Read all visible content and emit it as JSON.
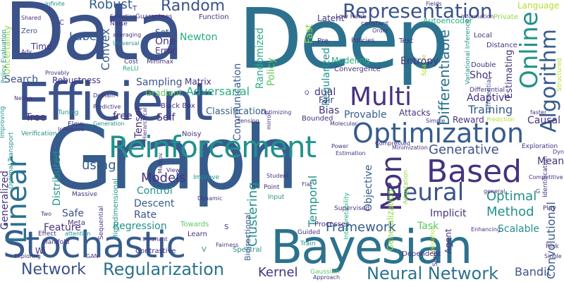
{
  "colors": {
    "deep_purple": "#46327e",
    "indigo": "#3b528b",
    "slate_blue": "#365c8d",
    "steel_blue": "#2c728e",
    "teal": "#21918c",
    "green_teal": "#27ad81",
    "green": "#5ec962",
    "light_green": "#8fd744",
    "yellow_green": "#b5de2b",
    "yellow": "#fde725",
    "purple": "#482878",
    "background": "#ffffff"
  },
  "words": {
    "data": "Data",
    "deep": "Deep",
    "graph": "Graph",
    "efficient": "Efficient",
    "bayesian": "Bayesian",
    "stochastic": "Stochastic",
    "reinforcement": "Reinforcement",
    "optimization": "Optimization",
    "based": "Based",
    "representation": "Representation",
    "linear": "Linear",
    "non": "Non",
    "neural": "Neural",
    "multi": "Multi",
    "online": "Online",
    "algorithm": "Algorithm",
    "random": "Random",
    "robust": "Robust",
    "network": "Network",
    "neural_network": "Neural Network",
    "regularization": "Regularization",
    "generative": "Generative",
    "optimal": "Optimal",
    "method": "Method",
    "models": "Models",
    "framework": "Framework",
    "kernel": "Kernel",
    "regression": "Regression",
    "descent": "Descent",
    "rate": "Rate",
    "control": "Control",
    "sampling": "Sampling",
    "adversarial": "Adversarial",
    "gradient": "Gradient",
    "convex": "Convex",
    "label": "Label",
    "search": "Search",
    "robustness": "Robustness",
    "tree": "Tree",
    "using": "using",
    "free": "free",
    "self": "Self",
    "newton": "Newton",
    "one": "One",
    "set": "Set",
    "error": "Error",
    "matrix": "Matrix",
    "tensor": "Tensor",
    "fair": "Fair",
    "bias": "Bias",
    "provable": "Provable",
    "attacks": "Attacks",
    "training": "Training",
    "adaptive": "Adaptive",
    "reward": "Reward",
    "causal": "Causal",
    "clustering": "Clustering",
    "temporal": "Temporal",
    "implicit": "Implicit",
    "objective": "Objective",
    "classification": "Classification",
    "modeling": "Modeling",
    "entropy": "Entropy",
    "latent": "Latent",
    "fast": "Fast",
    "policy": "Policy",
    "randomized": "Randomized",
    "regularized": "Regularized",
    "differentiable": "Differentiable",
    "shot": "Shot",
    "estimating": "Estimating",
    "mean": "Mean",
    "scalable": "Scalable",
    "convolutional": "Convolutional",
    "bandit": "Bandit",
    "task": "Task",
    "agent": "Agent",
    "feature": "Feature",
    "generalized": "Generalized",
    "distributed": "Distributed",
    "safe": "Safe",
    "time": "Time",
    "uncertainty": "Uncertainty",
    "language": "Language",
    "autoencoder": "Autoencoder",
    "communication": "Communication",
    "dual": "dual",
    "generalization": "Generalization",
    "lowrank": "Low Rank",
    "constant": "constant",
    "pre": "Pre",
    "policies": "Policies",
    "convergence": "Convergence",
    "local": "Local",
    "distance": "Distance",
    "double": "Double",
    "text": "Text",
    "sparse": "Sparse",
    "variational": "Variational Inference",
    "private": "Private",
    "information": "Information",
    "structured": "Structured",
    "differential": "Differential",
    "exploration": "Exploration",
    "identification": "Identification",
    "minimization": "Minimization",
    "adaptation": "Adaptation",
    "shared": "Shared",
    "infinite": "Infinite",
    "policy_evaluation": "Policy Evaluation",
    "zero": "Zero",
    "adv": "Adv",
    "noise": "Noise",
    "averaging": "averaging",
    "universal": "Universal",
    "relu": "ReLU",
    "cost": "Cost",
    "minimax": "Minimax",
    "guarantees": "Guarantees",
    "function": "Function",
    "selection": "Selection",
    "group": "Group",
    "provably": "Provably",
    "netwo": "Netwo",
    "domain": "Domain",
    "predictive": "Predictive",
    "generation": "Generation",
    "tuning": "Tuning",
    "flow": "Flow",
    "inference": "Inference",
    "verification": "Verification",
    "improving": "Improving",
    "optimal_transport": "Optimal Transport",
    "black_box": "Black Box",
    "hierarchical": "Hierarchical",
    "noisy": "Noisy",
    "sensing": "Sensing",
    "optimizing": "Optimizing",
    "mirror": "mirror",
    "bounded": "Bounded",
    "molecular": "Molecular",
    "simple": "Simple",
    "compressed": "Compressed",
    "power": "Power",
    "estimation": "Estimation",
    "massive": "Massive",
    "meta": "Meta",
    "markov": "Markov",
    "view": "View",
    "improve": "Improve",
    "dynamic": "Dynamic",
    "high_dimensional": "High dimensional",
    "sequential": "Sequential",
    "invariant": "Invariant",
    "towards": "Towards",
    "learn": "Learn",
    "contrastive": "Contrastive",
    "spectral": "Spectral",
    "fairness": "Fairness",
    "bidirectional": "Bidirectional",
    "input": "Input",
    "point": "Point",
    "student": "Student",
    "flat": "Flat",
    "supervised": "Supervised",
    "interpretability": "Interpretability",
    "processes": "Processes",
    "guided": "Guided",
    "train": "Train",
    "dependent": "Dependent",
    "gaussian": "Gaussian",
    "approach": "Approach",
    "semi": "Semi",
    "validation": "Validation",
    "enhancing": "Enhancing",
    "risk": "Risk",
    "single": "Single",
    "manifold": "Manifold",
    "gan": "GAN",
    "effect": "Effect",
    "attention": "attention",
    "exploring": "Exploring",
    "two": "Two",
    "faster": "faster",
    "competitive": "Competitive",
    "dyn": "Dyn",
    "play": "Play",
    "general": "general",
    "prediction": "Prediction",
    "order": "Order",
    "fields": "Fields",
    "c_letter": "C",
    "t_letter": "T",
    "s_letter": "S",
    "v_letter": "V",
    "g_letter": "G",
    "q_letter": "Q",
    "wi": "Wi"
  }
}
